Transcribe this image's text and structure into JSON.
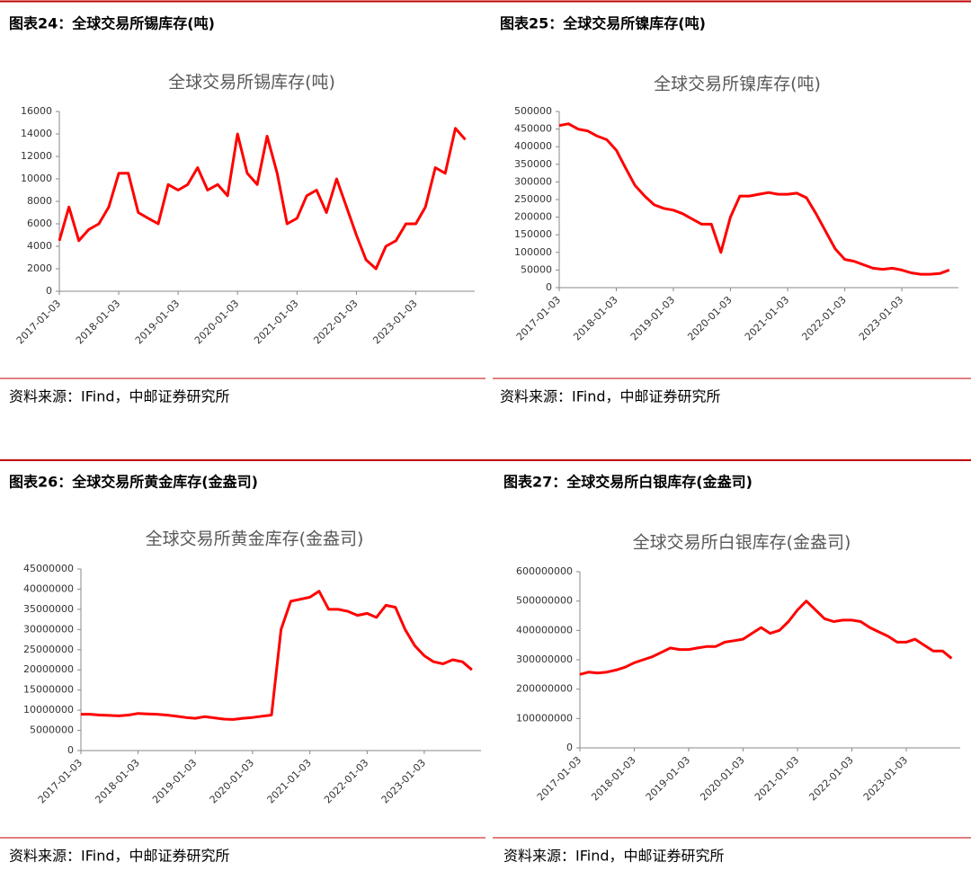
{
  "figures": [
    {
      "heading": "图表24：全球交易所锡库存(吨)",
      "source": "资料来源：IFind，中邮证券研究所"
    },
    {
      "heading": "图表25：全球交易所镍库存(吨)",
      "source": "资料来源：IFind，中邮证券研究所"
    },
    {
      "heading": "图表26：全球交易所黄金库存(金盎司)",
      "source": "资料来源：IFind，中邮证券研究所"
    },
    {
      "heading": "图表27：全球交易所白银库存(金盎司)",
      "source": "资料来源：IFind，中邮证券研究所"
    }
  ],
  "chart_data": [
    {
      "type": "line",
      "title": "全球交易所锡库存(吨)",
      "color": "#ff0000",
      "x": [
        "2017-01-03",
        "2017-03-03",
        "2017-05-03",
        "2017-07-03",
        "2017-09-03",
        "2017-11-03",
        "2018-01-03",
        "2018-03-03",
        "2018-05-03",
        "2018-07-03",
        "2018-09-03",
        "2018-11-03",
        "2019-01-03",
        "2019-03-03",
        "2019-05-03",
        "2019-07-03",
        "2019-09-03",
        "2019-11-03",
        "2020-01-03",
        "2020-03-03",
        "2020-05-03",
        "2020-07-03",
        "2020-09-03",
        "2020-11-03",
        "2021-01-03",
        "2021-03-03",
        "2021-05-03",
        "2021-07-03",
        "2021-09-03",
        "2021-11-03",
        "2022-01-03",
        "2022-03-03",
        "2022-05-03",
        "2022-07-03",
        "2022-09-03",
        "2022-11-03",
        "2023-01-03",
        "2023-03-03",
        "2023-05-03",
        "2023-07-03",
        "2023-09-03",
        "2023-11-03"
      ],
      "values": [
        4500,
        7500,
        4500,
        5500,
        6000,
        7500,
        10500,
        10500,
        7000,
        6500,
        6000,
        9500,
        9000,
        9500,
        11000,
        9000,
        9500,
        8500,
        14000,
        10500,
        9500,
        13800,
        10500,
        6000,
        6500,
        8500,
        9000,
        7000,
        10000,
        7500,
        5000,
        2800,
        2000,
        4000,
        4500,
        6000,
        6000,
        7500,
        11000,
        10500,
        14500,
        13500
      ],
      "xlim": [
        "2017-01-03",
        "2023-12-31"
      ],
      "xticks": [
        "2017-01-03",
        "2018-01-03",
        "2019-01-03",
        "2020-01-03",
        "2021-01-03",
        "2022-01-03",
        "2023-01-03"
      ],
      "ylim": [
        0,
        16000
      ],
      "yticks": [
        0,
        2000,
        4000,
        6000,
        8000,
        10000,
        12000,
        14000,
        16000
      ]
    },
    {
      "type": "line",
      "title": "全球交易所镍库存(吨)",
      "color": "#ff0000",
      "x": [
        "2017-01-03",
        "2017-03-03",
        "2017-05-03",
        "2017-07-03",
        "2017-09-03",
        "2017-11-03",
        "2018-01-03",
        "2018-03-03",
        "2018-05-03",
        "2018-07-03",
        "2018-09-03",
        "2018-11-03",
        "2019-01-03",
        "2019-03-03",
        "2019-05-03",
        "2019-07-03",
        "2019-09-03",
        "2019-11-03",
        "2020-01-03",
        "2020-03-03",
        "2020-05-03",
        "2020-07-03",
        "2020-09-03",
        "2020-11-03",
        "2021-01-03",
        "2021-03-03",
        "2021-05-03",
        "2021-07-03",
        "2021-09-03",
        "2021-11-03",
        "2022-01-03",
        "2022-03-03",
        "2022-05-03",
        "2022-07-03",
        "2022-09-03",
        "2022-11-03",
        "2023-01-03",
        "2023-03-03",
        "2023-05-03",
        "2023-07-03",
        "2023-09-03",
        "2023-11-03"
      ],
      "values": [
        460000,
        465000,
        450000,
        445000,
        430000,
        420000,
        390000,
        340000,
        290000,
        260000,
        235000,
        225000,
        220000,
        210000,
        195000,
        180000,
        180000,
        100000,
        200000,
        260000,
        260000,
        265000,
        270000,
        265000,
        265000,
        268000,
        255000,
        210000,
        160000,
        110000,
        80000,
        75000,
        65000,
        55000,
        52000,
        55000,
        50000,
        42000,
        38000,
        38000,
        40000,
        50000
      ],
      "xlim": [
        "2017-01-03",
        "2023-12-31"
      ],
      "xticks": [
        "2017-01-03",
        "2018-01-03",
        "2019-01-03",
        "2020-01-03",
        "2021-01-03",
        "2022-01-03",
        "2023-01-03"
      ],
      "ylim": [
        0,
        500000
      ],
      "yticks": [
        0,
        50000,
        100000,
        150000,
        200000,
        250000,
        300000,
        350000,
        400000,
        450000,
        500000
      ]
    },
    {
      "type": "line",
      "title": "全球交易所黄金库存(金盎司)",
      "color": "#ff0000",
      "x": [
        "2017-01-03",
        "2017-03-03",
        "2017-05-03",
        "2017-07-03",
        "2017-09-03",
        "2017-11-03",
        "2018-01-03",
        "2018-03-03",
        "2018-05-03",
        "2018-07-03",
        "2018-09-03",
        "2018-11-03",
        "2019-01-03",
        "2019-03-03",
        "2019-05-03",
        "2019-07-03",
        "2019-09-03",
        "2019-11-03",
        "2020-01-03",
        "2020-03-03",
        "2020-05-03",
        "2020-07-03",
        "2020-09-03",
        "2020-11-03",
        "2021-01-03",
        "2021-03-03",
        "2021-05-03",
        "2021-07-03",
        "2021-09-03",
        "2021-11-03",
        "2022-01-03",
        "2022-03-03",
        "2022-05-03",
        "2022-07-03",
        "2022-09-03",
        "2022-11-03",
        "2023-01-03",
        "2023-03-03",
        "2023-05-03",
        "2023-07-03",
        "2023-09-03",
        "2023-11-03"
      ],
      "values": [
        9000000,
        9000000,
        8800000,
        8700000,
        8600000,
        8800000,
        9200000,
        9100000,
        9000000,
        8800000,
        8500000,
        8200000,
        8000000,
        8400000,
        8100000,
        7800000,
        7700000,
        8000000,
        8200000,
        8500000,
        8800000,
        30000000,
        37000000,
        37500000,
        38000000,
        39500000,
        35000000,
        35000000,
        34500000,
        33500000,
        34000000,
        33000000,
        36000000,
        35500000,
        30000000,
        26000000,
        23500000,
        22000000,
        21500000,
        22500000,
        22000000,
        20000000
      ],
      "xlim": [
        "2017-01-03",
        "2023-12-31"
      ],
      "xticks": [
        "2017-01-03",
        "2018-01-03",
        "2019-01-03",
        "2020-01-03",
        "2021-01-03",
        "2022-01-03",
        "2023-01-03"
      ],
      "ylim": [
        0,
        45000000
      ],
      "yticks": [
        0,
        5000000,
        10000000,
        15000000,
        20000000,
        25000000,
        30000000,
        35000000,
        40000000,
        45000000
      ]
    },
    {
      "type": "line",
      "title": "全球交易所白银库存(金盎司)",
      "color": "#ff0000",
      "x": [
        "2017-01-03",
        "2017-03-03",
        "2017-05-03",
        "2017-07-03",
        "2017-09-03",
        "2017-11-03",
        "2018-01-03",
        "2018-03-03",
        "2018-05-03",
        "2018-07-03",
        "2018-09-03",
        "2018-11-03",
        "2019-01-03",
        "2019-03-03",
        "2019-05-03",
        "2019-07-03",
        "2019-09-03",
        "2019-11-03",
        "2020-01-03",
        "2020-03-03",
        "2020-05-03",
        "2020-07-03",
        "2020-09-03",
        "2020-11-03",
        "2021-01-03",
        "2021-03-03",
        "2021-05-03",
        "2021-07-03",
        "2021-09-03",
        "2021-11-03",
        "2022-01-03",
        "2022-03-03",
        "2022-05-03",
        "2022-07-03",
        "2022-09-03",
        "2022-11-03",
        "2023-01-03",
        "2023-03-03",
        "2023-05-03",
        "2023-07-03",
        "2023-09-03",
        "2023-11-03"
      ],
      "values": [
        250000000,
        258000000,
        255000000,
        258000000,
        265000000,
        275000000,
        290000000,
        300000000,
        310000000,
        325000000,
        340000000,
        335000000,
        335000000,
        340000000,
        345000000,
        345000000,
        360000000,
        365000000,
        370000000,
        390000000,
        410000000,
        390000000,
        400000000,
        430000000,
        470000000,
        500000000,
        470000000,
        440000000,
        430000000,
        435000000,
        435000000,
        430000000,
        410000000,
        395000000,
        380000000,
        360000000,
        360000000,
        370000000,
        350000000,
        330000000,
        330000000,
        305000000
      ],
      "xlim": [
        "2017-01-03",
        "2023-12-31"
      ],
      "xticks": [
        "2017-01-03",
        "2018-01-03",
        "2019-01-03",
        "2020-01-03",
        "2021-01-03",
        "2022-01-03",
        "2023-01-03"
      ],
      "ylim": [
        0,
        600000000
      ],
      "yticks": [
        0,
        100000000,
        200000000,
        300000000,
        400000000,
        500000000,
        600000000
      ]
    }
  ]
}
